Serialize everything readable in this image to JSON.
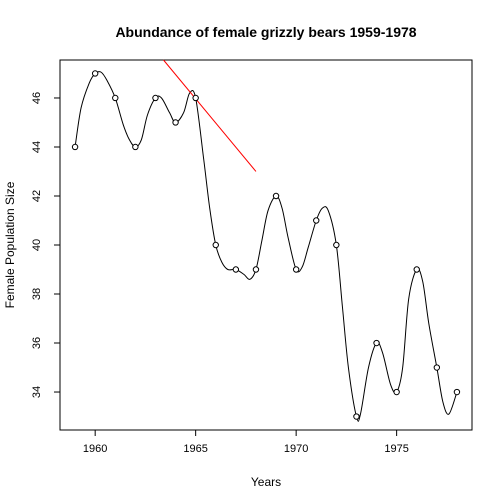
{
  "chart_data": {
    "type": "scatter",
    "title": "Abundance of female grizzly bears 1959-1978",
    "xlabel": "Years",
    "ylabel": "Female Population Size",
    "xlim": [
      1958.25,
      1978.75
    ],
    "ylim": [
      32.45,
      47.55
    ],
    "x_ticks": [
      "1960",
      "1965",
      "1970",
      "1975"
    ],
    "y_ticks": [
      "34",
      "36",
      "38",
      "40",
      "42",
      "44",
      "46"
    ],
    "grid": false,
    "legend": "none",
    "series": [
      {
        "points": [
          {
            "x": 1959,
            "y": 44
          },
          {
            "x": 1960,
            "y": 47
          },
          {
            "x": 1961,
            "y": 46
          },
          {
            "x": 1962,
            "y": 44
          },
          {
            "x": 1963,
            "y": 46
          },
          {
            "x": 1964,
            "y": 45
          },
          {
            "x": 1965,
            "y": 46
          },
          {
            "x": 1966,
            "y": 40
          },
          {
            "x": 1967,
            "y": 39
          },
          {
            "x": 1968,
            "y": 39
          },
          {
            "x": 1969,
            "y": 42
          },
          {
            "x": 1970,
            "y": 39
          },
          {
            "x": 1971,
            "y": 41
          },
          {
            "x": 1972,
            "y": 40
          },
          {
            "x": 1973,
            "y": 33
          },
          {
            "x": 1974,
            "y": 36
          },
          {
            "x": 1975,
            "y": 34
          },
          {
            "x": 1976,
            "y": 39
          },
          {
            "x": 1977,
            "y": 35
          },
          {
            "x": 1978,
            "y": 34
          }
        ],
        "color": "#000000"
      }
    ],
    "smooth_curve": {
      "color": "#000000",
      "points": [
        {
          "x": 1959.0,
          "y": 44.0
        },
        {
          "x": 1959.3,
          "y": 45.6
        },
        {
          "x": 1959.7,
          "y": 46.6
        },
        {
          "x": 1960.0,
          "y": 47.0
        },
        {
          "x": 1960.3,
          "y": 47.05
        },
        {
          "x": 1960.6,
          "y": 46.7
        },
        {
          "x": 1961.0,
          "y": 46.0
        },
        {
          "x": 1961.4,
          "y": 44.9
        },
        {
          "x": 1961.7,
          "y": 44.3
        },
        {
          "x": 1962.0,
          "y": 44.0
        },
        {
          "x": 1962.3,
          "y": 44.3
        },
        {
          "x": 1962.6,
          "y": 45.3
        },
        {
          "x": 1963.0,
          "y": 46.0
        },
        {
          "x": 1963.3,
          "y": 46.0
        },
        {
          "x": 1963.7,
          "y": 45.4
        },
        {
          "x": 1964.0,
          "y": 45.0
        },
        {
          "x": 1964.4,
          "y": 45.4
        },
        {
          "x": 1964.7,
          "y": 46.2
        },
        {
          "x": 1965.0,
          "y": 46.0
        },
        {
          "x": 1965.4,
          "y": 43.5
        },
        {
          "x": 1965.7,
          "y": 41.5
        },
        {
          "x": 1966.0,
          "y": 40.0
        },
        {
          "x": 1966.3,
          "y": 39.3
        },
        {
          "x": 1966.6,
          "y": 39.0
        },
        {
          "x": 1967.0,
          "y": 39.0
        },
        {
          "x": 1967.4,
          "y": 38.8
        },
        {
          "x": 1967.7,
          "y": 38.6
        },
        {
          "x": 1968.0,
          "y": 39.0
        },
        {
          "x": 1968.3,
          "y": 40.2
        },
        {
          "x": 1968.6,
          "y": 41.4
        },
        {
          "x": 1969.0,
          "y": 42.0
        },
        {
          "x": 1969.3,
          "y": 41.5
        },
        {
          "x": 1969.6,
          "y": 40.3
        },
        {
          "x": 1970.0,
          "y": 39.0
        },
        {
          "x": 1970.3,
          "y": 39.1
        },
        {
          "x": 1970.6,
          "y": 39.9
        },
        {
          "x": 1971.0,
          "y": 41.0
        },
        {
          "x": 1971.3,
          "y": 41.5
        },
        {
          "x": 1971.6,
          "y": 41.4
        },
        {
          "x": 1972.0,
          "y": 40.0
        },
        {
          "x": 1972.3,
          "y": 37.5
        },
        {
          "x": 1972.6,
          "y": 35.0
        },
        {
          "x": 1973.0,
          "y": 33.0
        },
        {
          "x": 1973.2,
          "y": 33.1
        },
        {
          "x": 1973.6,
          "y": 35.0
        },
        {
          "x": 1974.0,
          "y": 36.0
        },
        {
          "x": 1974.3,
          "y": 35.6
        },
        {
          "x": 1974.7,
          "y": 34.3
        },
        {
          "x": 1975.0,
          "y": 34.0
        },
        {
          "x": 1975.3,
          "y": 35.0
        },
        {
          "x": 1975.6,
          "y": 37.8
        },
        {
          "x": 1976.0,
          "y": 39.0
        },
        {
          "x": 1976.3,
          "y": 38.5
        },
        {
          "x": 1976.6,
          "y": 36.8
        },
        {
          "x": 1977.0,
          "y": 35.0
        },
        {
          "x": 1977.3,
          "y": 33.6
        },
        {
          "x": 1977.6,
          "y": 33.1
        },
        {
          "x": 1978.0,
          "y": 34.0
        }
      ]
    },
    "trend_line": {
      "color": "#ff0000",
      "x": [
        1963.4,
        1968.0
      ],
      "y": [
        47.55,
        43.0
      ]
    }
  }
}
